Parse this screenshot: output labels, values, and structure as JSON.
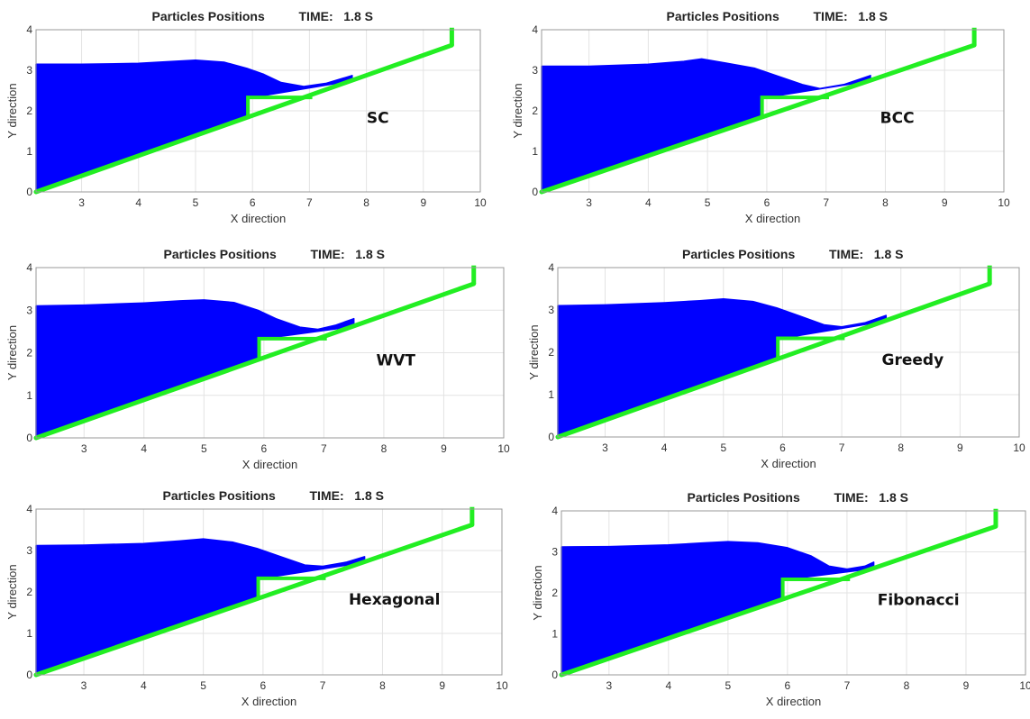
{
  "chart_data": [
    {
      "type": "scatter",
      "title_left": "Particles Positions",
      "title_time": "TIME:   1.8 S",
      "label": "SC",
      "xlabel": "X direction",
      "ylabel": "Y direction",
      "xlim": [
        2.2,
        10
      ],
      "ylim": [
        0,
        4
      ],
      "xticks": [
        "3",
        "4",
        "5",
        "6",
        "7",
        "8",
        "9",
        "10"
      ],
      "yticks": [
        "0",
        "1",
        "2",
        "3",
        "4"
      ],
      "fluid_profile": [
        [
          2.2,
          3.15
        ],
        [
          3,
          3.15
        ],
        [
          4,
          3.17
        ],
        [
          4.6,
          3.22
        ],
        [
          5.0,
          3.25
        ],
        [
          5.5,
          3.2
        ],
        [
          5.9,
          3.05
        ],
        [
          6.2,
          2.9
        ],
        [
          6.5,
          2.7
        ],
        [
          6.9,
          2.6
        ],
        [
          7.3,
          2.68
        ],
        [
          7.75,
          2.87
        ]
      ],
      "colors": {
        "fluid": "#0000ff",
        "boundary": "#22ee22"
      }
    },
    {
      "type": "scatter",
      "title_left": "Particles Positions",
      "title_time": "TIME:   1.8 S",
      "label": "BCC",
      "xlabel": "X direction",
      "ylabel": "Y direction",
      "xlim": [
        2.2,
        10
      ],
      "ylim": [
        0,
        4
      ],
      "xticks": [
        "3",
        "4",
        "5",
        "6",
        "7",
        "8",
        "9",
        "10"
      ],
      "yticks": [
        "0",
        "1",
        "2",
        "3",
        "4"
      ],
      "fluid_profile": [
        [
          2.2,
          3.1
        ],
        [
          3,
          3.1
        ],
        [
          4,
          3.15
        ],
        [
          4.6,
          3.22
        ],
        [
          4.9,
          3.28
        ],
        [
          5.3,
          3.18
        ],
        [
          5.8,
          3.05
        ],
        [
          6.2,
          2.85
        ],
        [
          6.6,
          2.65
        ],
        [
          6.9,
          2.55
        ],
        [
          7.3,
          2.65
        ],
        [
          7.75,
          2.87
        ]
      ],
      "colors": {
        "fluid": "#0000ff",
        "boundary": "#22ee22"
      }
    },
    {
      "type": "scatter",
      "title_left": "Particles Positions",
      "title_time": "TIME:   1.8 S",
      "label": "WVT",
      "xlabel": "X direction",
      "ylabel": "Y direction",
      "xlim": [
        2.2,
        10
      ],
      "ylim": [
        0,
        4
      ],
      "xticks": [
        "3",
        "4",
        "5",
        "6",
        "7",
        "8",
        "9",
        "10"
      ],
      "yticks": [
        "0",
        "1",
        "2",
        "3",
        "4"
      ],
      "fluid_profile": [
        [
          2.2,
          3.1
        ],
        [
          3,
          3.12
        ],
        [
          4,
          3.17
        ],
        [
          4.6,
          3.22
        ],
        [
          5.0,
          3.24
        ],
        [
          5.5,
          3.18
        ],
        [
          5.9,
          3.0
        ],
        [
          6.2,
          2.8
        ],
        [
          6.6,
          2.6
        ],
        [
          6.9,
          2.55
        ],
        [
          7.2,
          2.65
        ],
        [
          7.5,
          2.8
        ]
      ],
      "colors": {
        "fluid": "#0000ff",
        "boundary": "#22ee22"
      }
    },
    {
      "type": "scatter",
      "title_left": "Particles Positions",
      "title_time": "TIME:   1.8 S",
      "label": "Greedy",
      "xlabel": "X direction",
      "ylabel": "Y direction",
      "xlim": [
        2.2,
        10
      ],
      "ylim": [
        0,
        4
      ],
      "xticks": [
        "3",
        "4",
        "5",
        "6",
        "7",
        "8",
        "9",
        "10"
      ],
      "yticks": [
        "0",
        "1",
        "2",
        "3",
        "4"
      ],
      "fluid_profile": [
        [
          2.2,
          3.1
        ],
        [
          3,
          3.12
        ],
        [
          4,
          3.17
        ],
        [
          4.6,
          3.22
        ],
        [
          5.0,
          3.26
        ],
        [
          5.5,
          3.2
        ],
        [
          5.9,
          3.05
        ],
        [
          6.3,
          2.85
        ],
        [
          6.7,
          2.65
        ],
        [
          7.0,
          2.6
        ],
        [
          7.4,
          2.7
        ],
        [
          7.75,
          2.87
        ]
      ],
      "colors": {
        "fluid": "#0000ff",
        "boundary": "#22ee22"
      }
    },
    {
      "type": "scatter",
      "title_left": "Particles Positions",
      "title_time": "TIME:   1.8 S",
      "label": "Hexagonal",
      "xlabel": "X direction",
      "ylabel": "Y direction",
      "xlim": [
        2.2,
        10
      ],
      "ylim": [
        0,
        4
      ],
      "xticks": [
        "3",
        "4",
        "5",
        "6",
        "7",
        "8",
        "9",
        "10"
      ],
      "yticks": [
        "0",
        "1",
        "2",
        "3",
        "4"
      ],
      "fluid_profile": [
        [
          2.2,
          3.12
        ],
        [
          3,
          3.13
        ],
        [
          4,
          3.17
        ],
        [
          4.6,
          3.23
        ],
        [
          5.0,
          3.28
        ],
        [
          5.5,
          3.2
        ],
        [
          5.9,
          3.05
        ],
        [
          6.3,
          2.85
        ],
        [
          6.7,
          2.65
        ],
        [
          7.0,
          2.62
        ],
        [
          7.4,
          2.72
        ],
        [
          7.7,
          2.85
        ]
      ],
      "colors": {
        "fluid": "#0000ff",
        "boundary": "#22ee22"
      }
    },
    {
      "type": "scatter",
      "title_left": "Particles Positions",
      "title_time": "TIME:   1.8 S",
      "label": "Fibonacci",
      "xlabel": "X direction",
      "ylabel": "Y direction",
      "xlim": [
        2.2,
        10
      ],
      "ylim": [
        0,
        4
      ],
      "xticks": [
        "3",
        "4",
        "5",
        "6",
        "7",
        "8",
        "9",
        "10"
      ],
      "yticks": [
        "0",
        "1",
        "2",
        "3",
        "4"
      ],
      "fluid_profile": [
        [
          2.2,
          3.12
        ],
        [
          3,
          3.13
        ],
        [
          4,
          3.17
        ],
        [
          4.6,
          3.22
        ],
        [
          5.0,
          3.25
        ],
        [
          5.5,
          3.22
        ],
        [
          6.0,
          3.1
        ],
        [
          6.4,
          2.9
        ],
        [
          6.7,
          2.65
        ],
        [
          7.0,
          2.58
        ],
        [
          7.3,
          2.65
        ],
        [
          7.45,
          2.75
        ]
      ],
      "colors": {
        "fluid": "#0000ff",
        "boundary": "#22ee22"
      }
    }
  ]
}
